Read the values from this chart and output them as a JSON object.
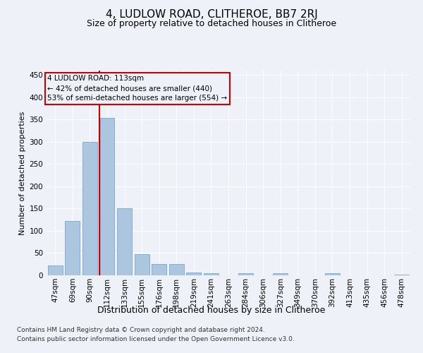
{
  "title": "4, LUDLOW ROAD, CLITHEROE, BB7 2RJ",
  "subtitle": "Size of property relative to detached houses in Clitheroe",
  "xlabel": "Distribution of detached houses by size in Clitheroe",
  "ylabel": "Number of detached properties",
  "footer_line1": "Contains HM Land Registry data © Crown copyright and database right 2024.",
  "footer_line2": "Contains public sector information licensed under the Open Government Licence v3.0.",
  "bar_labels": [
    "47sqm",
    "69sqm",
    "90sqm",
    "112sqm",
    "133sqm",
    "155sqm",
    "176sqm",
    "198sqm",
    "219sqm",
    "241sqm",
    "263sqm",
    "284sqm",
    "306sqm",
    "327sqm",
    "349sqm",
    "370sqm",
    "392sqm",
    "413sqm",
    "435sqm",
    "456sqm",
    "478sqm"
  ],
  "bar_values": [
    22,
    122,
    300,
    353,
    150,
    48,
    25,
    25,
    7,
    5,
    0,
    5,
    0,
    5,
    0,
    0,
    5,
    0,
    0,
    0,
    2
  ],
  "bar_color": "#adc6e0",
  "bar_edge_color": "#6699cc",
  "bar_width": 0.85,
  "vline_color": "#cc0000",
  "vline_x": 2.57,
  "annotation_title": "4 LUDLOW ROAD: 113sqm",
  "annotation_line1": "← 42% of detached houses are smaller (440)",
  "annotation_line2": "53% of semi-detached houses are larger (554) →",
  "ylim": [
    0,
    460
  ],
  "yticks": [
    0,
    50,
    100,
    150,
    200,
    250,
    300,
    350,
    400,
    450
  ],
  "bg_color": "#eef2f8",
  "grid_color": "#ffffff",
  "title_fontsize": 11,
  "subtitle_fontsize": 9,
  "ylabel_fontsize": 8,
  "xlabel_fontsize": 9,
  "tick_fontsize": 7.5,
  "footer_fontsize": 6.5
}
